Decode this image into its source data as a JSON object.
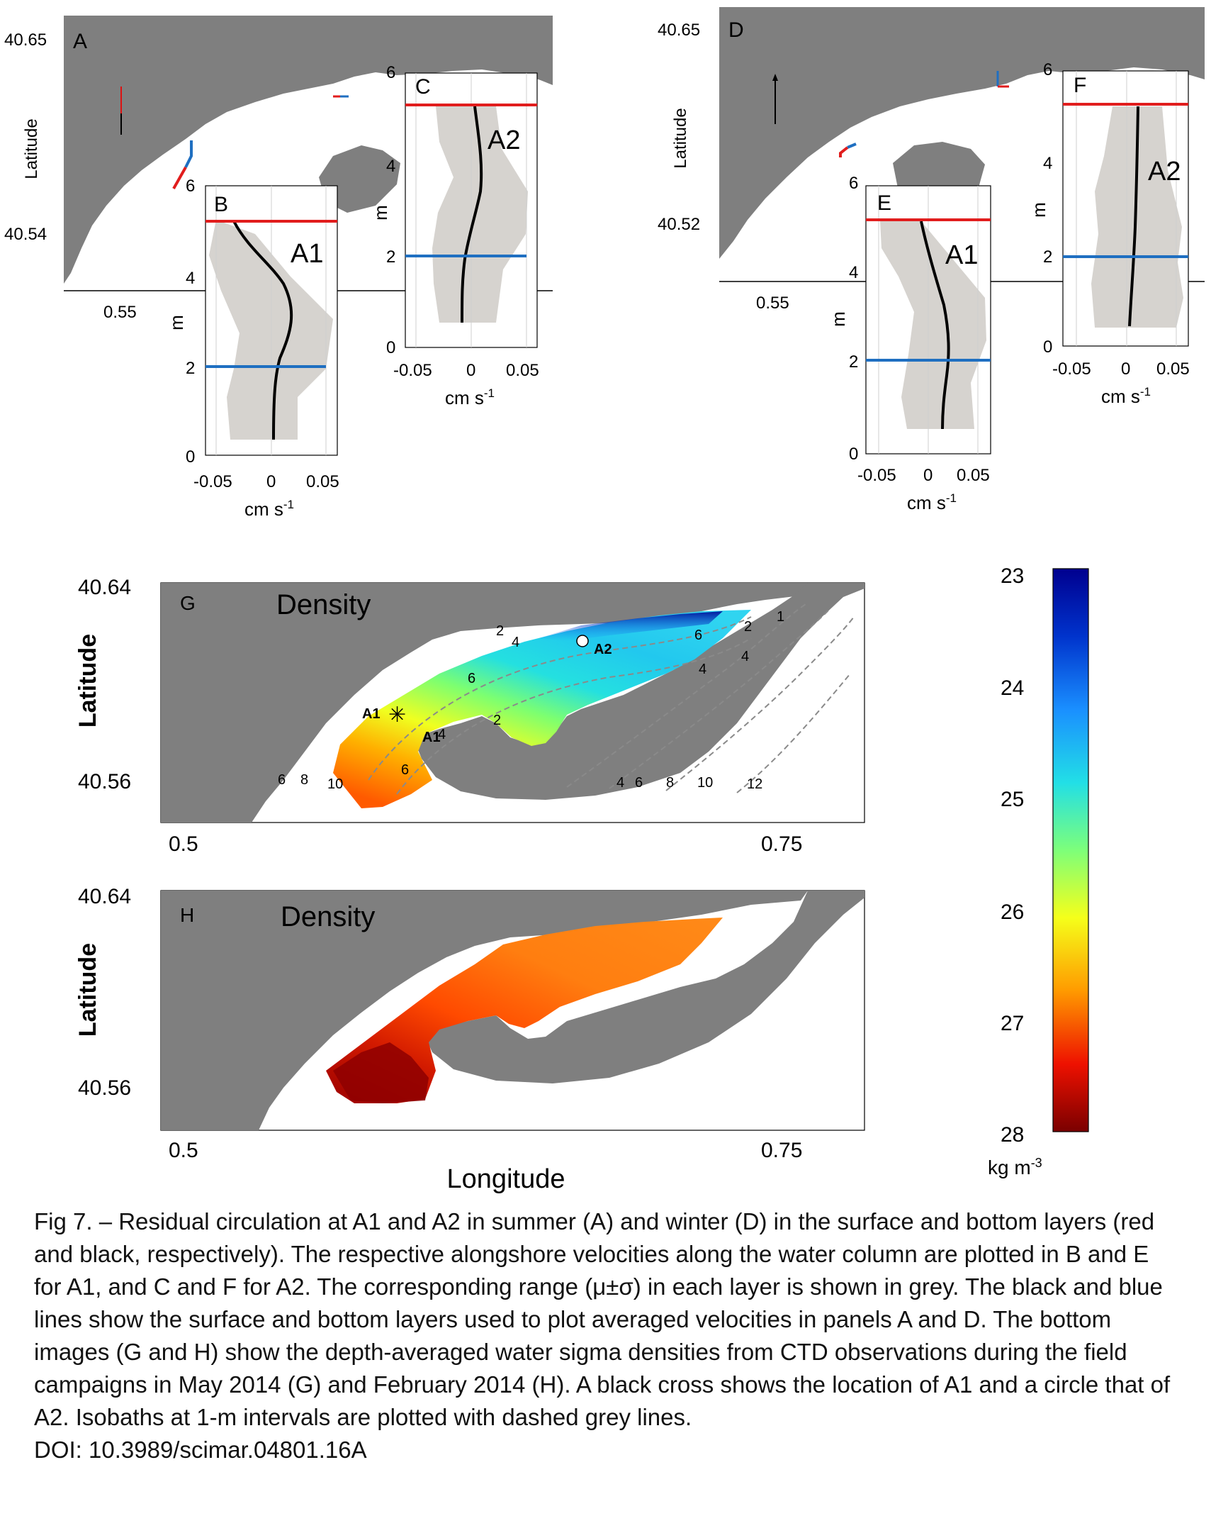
{
  "figure": {
    "panel_letters": [
      "A",
      "B",
      "C",
      "D",
      "E",
      "F",
      "G",
      "H"
    ],
    "colors": {
      "land": "#7f7f7f",
      "range_band": "#d6d3cf",
      "surface_line": "#e11d1d",
      "bottom_line": "#1f6fc1",
      "profile": "#000000"
    }
  },
  "top_maps": {
    "A": {
      "lat_ticks": [
        "40.65",
        "40.54"
      ],
      "lon_tick": "0.55",
      "ylabel": "Latitude"
    },
    "D": {
      "lat_ticks": [
        "40.65",
        "40.52"
      ],
      "lon_tick": "0.55",
      "ylabel": "Latitude"
    }
  },
  "profiles": {
    "xlabel": "cm s",
    "xlabel_sup": "-1",
    "ylabel": "m",
    "x_ticks": [
      "-0.05",
      "0",
      "0.05"
    ],
    "y_ticks": [
      "0",
      "2",
      "4",
      "6"
    ],
    "B": {
      "site": "A1"
    },
    "C": {
      "site": "A2"
    },
    "E": {
      "site": "A1"
    },
    "F": {
      "site": "A2"
    }
  },
  "density_maps": {
    "G": {
      "title": "Density",
      "lat_ticks": [
        "40.64",
        "40.56"
      ],
      "lon_ticks": [
        "0.5",
        "0.75"
      ],
      "ylabel": "Latitude",
      "site_labels": [
        "A1",
        "A1",
        "A2"
      ],
      "isobath_labels": [
        "2",
        "4",
        "6",
        "2",
        "4",
        "6",
        "2",
        "4",
        "1",
        "6",
        "8",
        "10",
        "6",
        "4",
        "4",
        "6",
        "8",
        "10",
        "12"
      ]
    },
    "H": {
      "title": "Density",
      "lat_ticks": [
        "40.64",
        "40.56"
      ],
      "lon_ticks": [
        "0.5",
        "0.75"
      ],
      "ylabel": "Latitude",
      "xlabel": "Longitude"
    }
  },
  "colorbar": {
    "ticks": [
      "23",
      "24",
      "25",
      "26",
      "27",
      "28"
    ],
    "unit": "kg m",
    "unit_sup": "-3"
  },
  "caption": {
    "text": "Fig 7. – Residual circulation at A1 and A2 in summer (A) and winter (D) in the surface and bottom layers (red and black, respectively). The respective alongshore velocities along the water column are plotted in B and E for A1, and C and F for A2. The corresponding range (μ±σ) in each layer is shown in grey. The black and blue lines show the surface and bottom layers used to plot averaged velocities in panels A and D. The bottom images (G and H) show the depth-averaged water sigma densities from CTD observations during the field campaigns in May 2014 (G) and February 2014 (H). A black cross shows the location of A1 and a circle that of A2. Isobaths at 1-m intervals are plotted with dashed grey lines.",
    "doi": "DOI: 10.3989/scimar.04801.16A"
  }
}
